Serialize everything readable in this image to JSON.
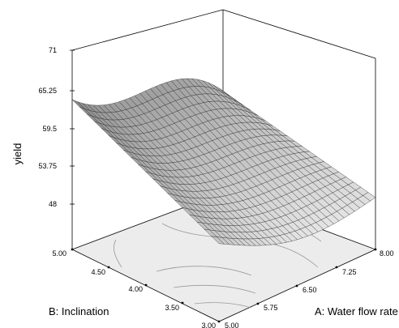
{
  "chart_data": {
    "type": "surface",
    "zlabel": "yield",
    "xlabel": "A: Water flow rate",
    "ylabel": "B: Inclination",
    "x_ticks": [
      "5.00",
      "5.75",
      "6.50",
      "7.25",
      "8.00"
    ],
    "y_ticks": [
      "3.00",
      "3.50",
      "4.00",
      "4.50",
      "5.00"
    ],
    "z_ticks": [
      "48",
      "53.75",
      "59.5",
      "65.25",
      "71"
    ],
    "xlim": [
      5.0,
      8.0
    ],
    "ylim": [
      3.0,
      5.0
    ],
    "zlim": [
      48,
      71
    ],
    "grid_x": [
      5.0,
      5.1,
      5.2,
      5.3,
      5.4,
      5.5,
      5.6,
      5.7,
      5.8,
      5.9,
      6.0,
      6.1,
      6.2,
      6.3,
      6.4,
      6.5,
      6.6,
      6.7,
      6.8,
      6.9,
      7.0,
      7.1,
      7.2,
      7.3,
      7.4,
      7.5,
      7.6,
      7.7,
      7.8,
      7.9,
      8.0
    ],
    "grid_y": [
      3.0,
      3.1,
      3.2,
      3.3,
      3.4,
      3.5,
      3.6,
      3.7,
      3.8,
      3.9,
      4.0,
      4.1,
      4.2,
      4.3,
      4.4,
      4.5,
      4.6,
      4.7,
      4.8,
      4.9,
      5.0
    ],
    "surface_corners": [
      {
        "A": 5.0,
        "B": 5.0,
        "yield": 65.3
      },
      {
        "A": 8.0,
        "B": 5.0,
        "yield": 57.5
      },
      {
        "A": 8.0,
        "B": 3.0,
        "yield": 54.0
      },
      {
        "A": 5.0,
        "B": 3.0,
        "yield": 57.0
      }
    ]
  }
}
